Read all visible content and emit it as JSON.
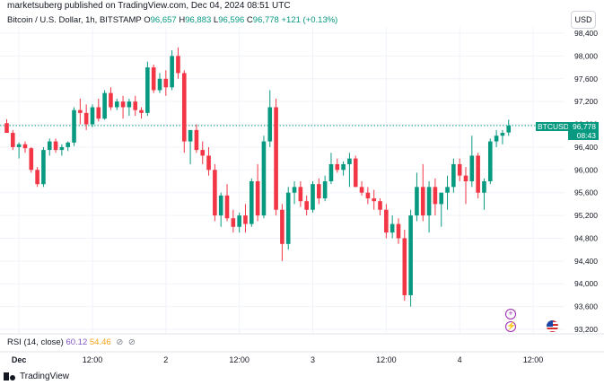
{
  "header": {
    "publisher": "marketsuberg published on TradingView.com, Dec 04, 2024 08:51 UTC"
  },
  "legend": {
    "symbol": "Bitcoin / U.S. Dollar, 1h, BITSTAMP",
    "o_label": "O",
    "o": "96,657",
    "h_label": "H",
    "h": "96,883",
    "l_label": "L",
    "l": "96,596",
    "c_label": "C",
    "c": "96,778",
    "change": "+121 (+0.13%)"
  },
  "currency": "USD",
  "price_tag": {
    "name": "BTCUSD",
    "price": "96,778",
    "countdown": "08:43"
  },
  "rsi": {
    "label": "RSI (14, close)",
    "value1": "60.12",
    "value2": "54.46",
    "eye_icon": "eye-icon",
    "settings_icon": "settings-icon"
  },
  "footer": {
    "brand": "TradingView"
  },
  "colors": {
    "up": "#089981",
    "down": "#f23645",
    "grid": "#f0f3fa",
    "text": "#131722",
    "price_line": "#089981"
  },
  "chart_data": {
    "type": "candlestick",
    "title": "Bitcoin / U.S. Dollar, 1h, BITSTAMP",
    "ylabel": "USD",
    "ylim": [
      93000,
      98600
    ],
    "y_ticks": [
      93200,
      93600,
      94000,
      94400,
      94800,
      95200,
      95600,
      96000,
      96400,
      96800,
      97200,
      97600,
      98000,
      98400
    ],
    "y_tick_labels": [
      "93,200",
      "93,600",
      "94,000",
      "94,400",
      "94,800",
      "95,200",
      "95,600",
      "96,000",
      "96,400",
      "96,800",
      "97,200",
      "97,600",
      "98,000",
      "98,400"
    ],
    "x_ticks": [
      {
        "label": "Dec",
        "i": 2
      },
      {
        "label": "12:00",
        "i": 14
      },
      {
        "label": "2",
        "i": 26
      },
      {
        "label": "12:00",
        "i": 38
      },
      {
        "label": "3",
        "i": 50
      },
      {
        "label": "12:00",
        "i": 62
      },
      {
        "label": "4",
        "i": 74
      },
      {
        "label": "12:00",
        "i": 86
      }
    ],
    "last_price": 96778,
    "candles": [
      [
        96820,
        96890,
        96650,
        96650
      ],
      [
        96650,
        96700,
        96350,
        96400
      ],
      [
        96400,
        96480,
        96200,
        96450
      ],
      [
        96450,
        96500,
        96300,
        96380
      ],
      [
        96380,
        96400,
        95950,
        96000
      ],
      [
        96000,
        96050,
        95700,
        95750
      ],
      [
        95750,
        96400,
        95700,
        96350
      ],
      [
        96350,
        96550,
        96250,
        96500
      ],
      [
        96500,
        96550,
        96300,
        96350
      ],
      [
        96350,
        96450,
        96250,
        96400
      ],
      [
        96400,
        96500,
        96330,
        96480
      ],
      [
        96480,
        97100,
        96420,
        97050
      ],
      [
        97050,
        97250,
        96800,
        97000
      ],
      [
        97000,
        97150,
        96700,
        96800
      ],
      [
        96800,
        97150,
        96750,
        97100
      ],
      [
        97100,
        97250,
        96850,
        96900
      ],
      [
        96900,
        97400,
        96880,
        97350
      ],
      [
        97350,
        97450,
        97050,
        97100
      ],
      [
        97100,
        97250,
        97050,
        97200
      ],
      [
        97200,
        97300,
        96900,
        97100
      ],
      [
        97100,
        97250,
        96950,
        97200
      ],
      [
        97200,
        97300,
        96950,
        97050
      ],
      [
        97050,
        97100,
        96900,
        97000
      ],
      [
        97000,
        97900,
        96950,
        97800
      ],
      [
        97800,
        97850,
        97350,
        97400
      ],
      [
        97400,
        97700,
        97350,
        97600
      ],
      [
        97600,
        97750,
        97300,
        97450
      ],
      [
        97450,
        98100,
        97400,
        98000
      ],
      [
        98000,
        98150,
        97600,
        97700
      ],
      [
        97700,
        97750,
        96300,
        96500
      ],
      [
        96500,
        96650,
        96100,
        96700
      ],
      [
        96700,
        96800,
        96300,
        96350
      ],
      [
        96350,
        96500,
        96100,
        96250
      ],
      [
        96250,
        96400,
        95900,
        96000
      ],
      [
        96000,
        96100,
        95100,
        95200
      ],
      [
        95200,
        95600,
        95000,
        95550
      ],
      [
        95550,
        95750,
        95100,
        95150
      ],
      [
        95150,
        95300,
        94900,
        95000
      ],
      [
        95000,
        95250,
        94900,
        95200
      ],
      [
        95200,
        95400,
        94900,
        95050
      ],
      [
        95050,
        95850,
        95000,
        95800
      ],
      [
        95800,
        96100,
        95100,
        95200
      ],
      [
        95200,
        96600,
        95150,
        96500
      ],
      [
        96500,
        97400,
        96400,
        97100
      ],
      [
        97100,
        97250,
        95200,
        95300
      ],
      [
        95300,
        95400,
        94400,
        94700
      ],
      [
        94700,
        95700,
        94600,
        95600
      ],
      [
        95600,
        95800,
        95400,
        95700
      ],
      [
        95700,
        95800,
        95350,
        95450
      ],
      [
        95450,
        95550,
        95200,
        95300
      ],
      [
        95300,
        95800,
        95250,
        95750
      ],
      [
        95750,
        95850,
        95400,
        95500
      ],
      [
        95500,
        95900,
        95450,
        95800
      ],
      [
        95800,
        96300,
        95750,
        96100
      ],
      [
        96100,
        96200,
        95950,
        96000
      ],
      [
        96000,
        96150,
        95900,
        96100
      ],
      [
        96100,
        96300,
        95700,
        96200
      ],
      [
        96200,
        96250,
        95700,
        95700
      ],
      [
        95700,
        95800,
        95550,
        95600
      ],
      [
        95600,
        95700,
        95400,
        95500
      ],
      [
        95500,
        95650,
        95300,
        95450
      ],
      [
        95450,
        95500,
        95200,
        95300
      ],
      [
        95300,
        95400,
        94800,
        94900
      ],
      [
        94900,
        95200,
        94800,
        95050
      ],
      [
        95050,
        95150,
        94700,
        94800
      ],
      [
        94800,
        94950,
        93700,
        93800
      ],
      [
        93800,
        95300,
        93600,
        95200
      ],
      [
        95200,
        95950,
        95100,
        95700
      ],
      [
        95700,
        96100,
        95100,
        95200
      ],
      [
        95200,
        95800,
        94900,
        95700
      ],
      [
        95700,
        95850,
        95200,
        95400
      ],
      [
        95400,
        95600,
        95000,
        95600
      ],
      [
        95600,
        95900,
        95300,
        95700
      ],
      [
        95700,
        96200,
        95600,
        96100
      ],
      [
        96100,
        96200,
        95800,
        95900
      ],
      [
        95900,
        96050,
        95400,
        95800
      ],
      [
        95800,
        96600,
        95700,
        96250
      ],
      [
        96250,
        96300,
        95500,
        95600
      ],
      [
        95600,
        95850,
        95300,
        95800
      ],
      [
        95800,
        96550,
        95750,
        96500
      ],
      [
        96500,
        96700,
        96400,
        96600
      ],
      [
        96600,
        96700,
        96450,
        96650
      ],
      [
        96657,
        96883,
        96596,
        96778
      ]
    ]
  }
}
